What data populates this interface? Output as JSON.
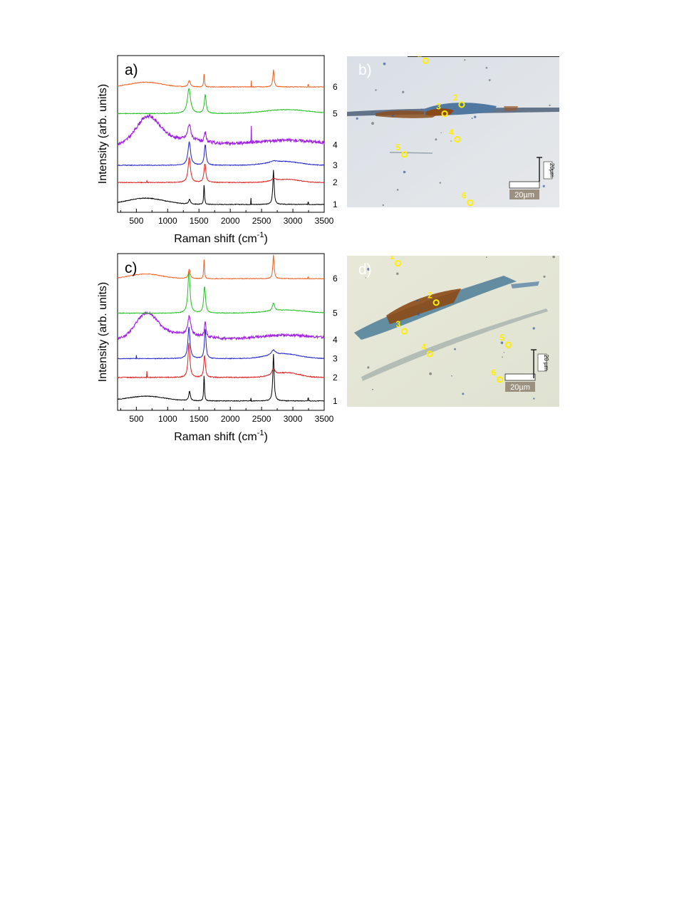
{
  "figure": {
    "panels": [
      {
        "label": "a)",
        "kind": "spectra"
      },
      {
        "label": "b)",
        "kind": "micrograph"
      },
      {
        "label": "c)",
        "kind": "spectra"
      },
      {
        "label": "d)",
        "kind": "micrograph"
      }
    ]
  },
  "chart_data": [
    {
      "type": "line",
      "panel": "a)",
      "xlabel": "Raman shift (cm",
      "xlabel_sup": "-1",
      "xlabel_close": ")",
      "ylabel": "Intensity (arb. units)",
      "xlim": [
        200,
        3500
      ],
      "xticks": [
        "500",
        "1000",
        "1500",
        "2000",
        "2500",
        "3000",
        "3500"
      ],
      "series": [
        {
          "name": "1",
          "color": "#000000",
          "baseline": 0.05,
          "bg": [
            [
              650,
              300,
              0.04
            ]
          ],
          "peaks": [
            [
              1350,
              35,
              0.03
            ],
            [
              1582,
              15,
              0.13
            ],
            [
              2690,
              25,
              0.22
            ]
          ],
          "spikes": [
            [
              2330,
              0.04
            ],
            [
              3245,
              0.015
            ]
          ],
          "noise": 0.002
        },
        {
          "name": "2",
          "color": "#e02020",
          "baseline": 0.19,
          "bg": [
            [
              2900,
              200,
              0.02
            ]
          ],
          "peaks": [
            [
              1345,
              45,
              0.16
            ],
            [
              1595,
              35,
              0.12
            ],
            [
              2690,
              80,
              0.015
            ]
          ],
          "spikes": [
            [
              670,
              0.01
            ]
          ],
          "noise": 0.002
        },
        {
          "name": "3",
          "color": "#2020c8",
          "baseline": 0.3,
          "bg": [
            [
              2850,
              250,
              0.025
            ]
          ],
          "peaks": [
            [
              1345,
              50,
              0.15
            ],
            [
              1600,
              35,
              0.13
            ],
            [
              2690,
              80,
              0.01
            ]
          ],
          "spikes": [],
          "noise": 0.002
        },
        {
          "name": "4",
          "color": "#a020e0",
          "baseline": 0.43,
          "bg": [
            [
              680,
              180,
              0.16
            ],
            [
              1100,
              400,
              0.04
            ],
            [
              2900,
              500,
              0.03
            ]
          ],
          "peaks": [
            [
              1345,
              60,
              0.1
            ],
            [
              1600,
              30,
              0.06
            ]
          ],
          "spikes": [
            [
              2335,
              0.11
            ]
          ],
          "noise": 0.01
        },
        {
          "name": "5",
          "color": "#20c020",
          "baseline": 0.63,
          "bg": [
            [
              2900,
              350,
              0.025
            ]
          ],
          "peaks": [
            [
              1340,
              60,
              0.16
            ],
            [
              1600,
              35,
              0.12
            ]
          ],
          "spikes": [],
          "noise": 0.002
        },
        {
          "name": "6",
          "color": "#f06020",
          "baseline": 0.8,
          "bg": [
            [
              650,
              250,
              0.03
            ]
          ],
          "peaks": [
            [
              1345,
              40,
              0.04
            ],
            [
              1582,
              15,
              0.09
            ],
            [
              2690,
              25,
              0.11
            ]
          ],
          "spikes": [
            [
              2335,
              0.04
            ],
            [
              3245,
              0.015
            ]
          ],
          "noise": 0.002
        }
      ]
    },
    {
      "type": "line",
      "panel": "c)",
      "xlabel": "Raman shift (cm",
      "xlabel_sup": "-1",
      "xlabel_close": ")",
      "ylabel": "Intensity (arb. units)",
      "xlim": [
        200,
        3500
      ],
      "xticks": [
        "500",
        "1000",
        "1500",
        "2000",
        "2500",
        "3000",
        "3500"
      ],
      "series": [
        {
          "name": "1",
          "color": "#000000",
          "baseline": 0.06,
          "bg": [
            [
              650,
              300,
              0.03
            ]
          ],
          "peaks": [
            [
              1350,
              30,
              0.06
            ],
            [
              1582,
              15,
              0.17
            ],
            [
              2690,
              25,
              0.3
            ]
          ],
          "spikes": [
            [
              2330,
              0.02
            ],
            [
              3245,
              0.02
            ]
          ],
          "noise": 0.002
        },
        {
          "name": "2",
          "color": "#e02020",
          "baseline": 0.21,
          "bg": [
            [
              2900,
              200,
              0.03
            ]
          ],
          "peaks": [
            [
              1340,
              35,
              0.22
            ],
            [
              1590,
              30,
              0.14
            ],
            [
              2690,
              60,
              0.04
            ]
          ],
          "spikes": [
            [
              670,
              0.04
            ]
          ],
          "noise": 0.003
        },
        {
          "name": "3",
          "color": "#2020c8",
          "baseline": 0.33,
          "bg": [
            [
              2850,
              250,
              0.03
            ]
          ],
          "peaks": [
            [
              1340,
              40,
              0.2
            ],
            [
              1600,
              30,
              0.19
            ],
            [
              2690,
              80,
              0.03
            ]
          ],
          "spikes": [
            [
              500,
              0.02
            ]
          ],
          "noise": 0.002
        },
        {
          "name": "4",
          "color": "#a020e0",
          "baseline": 0.45,
          "bg": [
            [
              660,
              170,
              0.15
            ],
            [
              1100,
              400,
              0.04
            ],
            [
              2900,
              500,
              0.03
            ]
          ],
          "peaks": [
            [
              1345,
              55,
              0.12
            ],
            [
              1600,
              30,
              0.1
            ]
          ],
          "spikes": [],
          "noise": 0.008
        },
        {
          "name": "5",
          "color": "#20c020",
          "baseline": 0.62,
          "bg": [
            [
              2900,
              300,
              0.02
            ]
          ],
          "peaks": [
            [
              1340,
              40,
              0.27
            ],
            [
              1590,
              35,
              0.17
            ],
            [
              2690,
              40,
              0.05
            ]
          ],
          "spikes": [],
          "noise": 0.002
        },
        {
          "name": "6",
          "color": "#f06020",
          "baseline": 0.84,
          "bg": [
            [
              650,
              250,
              0.03
            ]
          ],
          "peaks": [
            [
              1345,
              35,
              0.06
            ],
            [
              1582,
              15,
              0.13
            ],
            [
              2690,
              25,
              0.15
            ]
          ],
          "spikes": [
            [
              3245,
              0.01
            ]
          ],
          "noise": 0.002
        }
      ]
    }
  ],
  "micrographs": [
    {
      "panel": "b)",
      "points": [
        {
          "label": "1",
          "x": 0.37,
          "y": 0.03
        },
        {
          "label": "2",
          "x": 0.54,
          "y": 0.32
        },
        {
          "label": "3",
          "x": 0.46,
          "y": 0.38
        },
        {
          "label": "4",
          "x": 0.52,
          "y": 0.55
        },
        {
          "label": "5",
          "x": 0.27,
          "y": 0.65
        },
        {
          "label": "6",
          "x": 0.58,
          "y": 0.97
        }
      ],
      "scalebar_h": "20µm",
      "scalebar_v": "20µm"
    },
    {
      "panel": "d)",
      "points": [
        {
          "label": "1",
          "x": 0.24,
          "y": 0.05
        },
        {
          "label": "2",
          "x": 0.42,
          "y": 0.31
        },
        {
          "label": "3",
          "x": 0.27,
          "y": 0.5
        },
        {
          "label": "4",
          "x": 0.39,
          "y": 0.65
        },
        {
          "label": "5",
          "x": 0.76,
          "y": 0.59
        },
        {
          "label": "6",
          "x": 0.72,
          "y": 0.82
        }
      ],
      "scalebar_h": "20µm",
      "scalebar_v": "20 µm"
    }
  ]
}
